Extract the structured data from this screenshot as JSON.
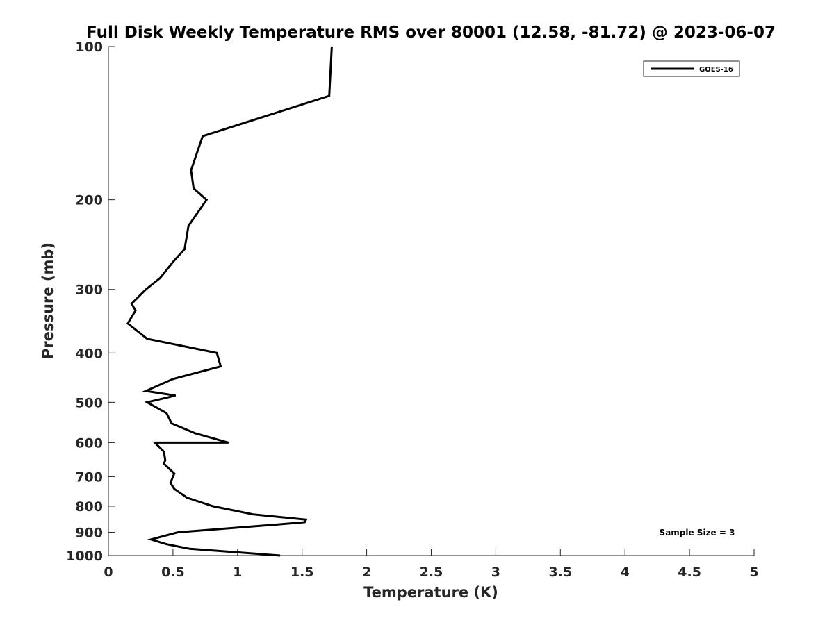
{
  "chart_data": {
    "type": "line",
    "title": "Full Disk Weekly Temperature RMS over 80001 (12.58, -81.72) @ 2023-06-07",
    "xlabel": "Temperature (K)",
    "ylabel": "Pressure (mb)",
    "xlim": [
      0,
      5
    ],
    "ylim": [
      100,
      1000
    ],
    "y_scale": "log",
    "y_reversed": true,
    "x_ticks": [
      "0",
      "0.5",
      "1",
      "1.5",
      "2",
      "2.5",
      "3",
      "3.5",
      "4",
      "4.5",
      "5"
    ],
    "y_ticks": [
      "100",
      "200",
      "300",
      "400",
      "500",
      "600",
      "700",
      "800",
      "900",
      "1000"
    ],
    "grid": false,
    "legend_position": "top-right",
    "line_color": "#000000",
    "series": [
      {
        "name": "GOES-16",
        "x": [
          1.73,
          1.71,
          0.73,
          0.64,
          0.66,
          0.76,
          0.62,
          0.59,
          0.5,
          0.4,
          0.29,
          0.18,
          0.21,
          0.15,
          0.3,
          0.84,
          0.87,
          0.5,
          0.29,
          0.52,
          0.3,
          0.45,
          0.49,
          0.67,
          0.93,
          0.36,
          0.43,
          0.44,
          0.43,
          0.51,
          0.48,
          0.51,
          0.61,
          0.81,
          1.12,
          1.53,
          1.52,
          1.28,
          0.54,
          0.33,
          0.45,
          0.63,
          1.33
        ],
        "y": [
          100,
          125,
          150,
          175,
          190,
          200,
          225,
          250,
          265,
          285,
          300,
          320,
          330,
          350,
          375,
          400,
          425,
          450,
          475,
          485,
          500,
          525,
          550,
          575,
          600,
          600,
          625,
          650,
          660,
          690,
          720,
          740,
          770,
          800,
          830,
          850,
          860,
          870,
          900,
          930,
          950,
          970,
          1000
        ]
      }
    ],
    "annotations": [
      "Sample Size = 3"
    ]
  }
}
